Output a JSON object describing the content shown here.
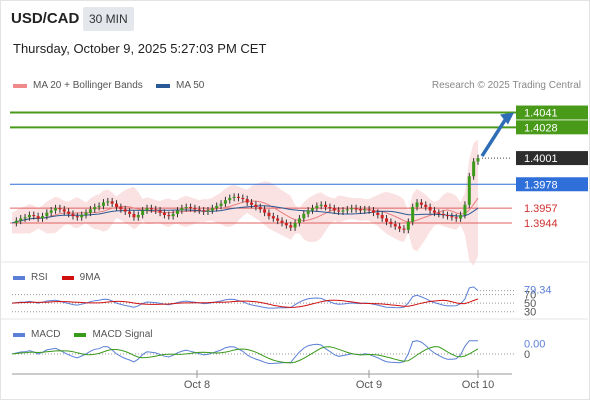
{
  "header": {
    "symbol": "USD/CAD",
    "timeframe": "30 MIN",
    "datetime": "Thursday, October 9, 2025 5:27:03 PM CET"
  },
  "legend": {
    "ma20_label": "MA 20 + Bollinger Bands",
    "ma50_label": "MA 50",
    "credit": "Research © 2025 Trading Central"
  },
  "colors": {
    "resistance_line": "#4a9a1a",
    "current_price_line": "#2e6fd9",
    "support_line": "#e06060",
    "arrow": "#2e6db5",
    "bollinger_fill": "#f8d8d8",
    "ma20": "#e87f7f",
    "ma50": "#2a5a96",
    "rsi": "#5b7fd6",
    "rsi_ma": "#d01010",
    "macd": "#5b7fd6",
    "macd_signal": "#3a9a1a"
  },
  "rsi_panel": {
    "label": "RSI",
    "ma_label": "9MA",
    "current_value": "79.34",
    "ref_70": "70",
    "ref_50": "50",
    "ref_30": "30"
  },
  "macd_panel": {
    "label": "MACD",
    "signal_label": "MACD Signal",
    "current_value": "0.00",
    "zero_label": "0"
  },
  "chart_data": {
    "type": "candlestick",
    "ylim": [
      1.3915,
      1.4052
    ],
    "x_ticks": [
      "Oct 8",
      "Oct 9",
      "Oct 10"
    ],
    "levels": [
      {
        "label": "1.4041",
        "value": 1.4041,
        "kind": "resistance"
      },
      {
        "label": "1.4028",
        "value": 1.4028,
        "kind": "resistance"
      },
      {
        "label": "1.4001",
        "value": 1.4001,
        "kind": "last_price"
      },
      {
        "label": "1.3978",
        "value": 1.3978,
        "kind": "current"
      },
      {
        "label": "1.3957",
        "value": 1.3957,
        "kind": "support"
      },
      {
        "label": "1.3944",
        "value": 1.3944,
        "kind": "support"
      }
    ],
    "price_path": [
      1.3944,
      1.3946,
      1.3948,
      1.3949,
      1.3951,
      1.395,
      1.3948,
      1.395,
      1.3953,
      1.3955,
      1.3957,
      1.3956,
      1.3954,
      1.3952,
      1.395,
      1.3949,
      1.3951,
      1.3953,
      1.3956,
      1.3958,
      1.3959,
      1.3962,
      1.3963,
      1.3961,
      1.3958,
      1.3956,
      1.3954,
      1.3952,
      1.3949,
      1.3951,
      1.3955,
      1.3957,
      1.3956,
      1.3955,
      1.3953,
      1.3951,
      1.395,
      1.3952,
      1.3955,
      1.3957,
      1.3958,
      1.3957,
      1.3956,
      1.3955,
      1.3954,
      1.3955,
      1.3957,
      1.3959,
      1.3961,
      1.3964,
      1.3966,
      1.3967,
      1.3966,
      1.3965,
      1.3962,
      1.396,
      1.3958,
      1.3956,
      1.3953,
      1.395,
      1.3948,
      1.3946,
      1.3944,
      1.3942,
      1.394,
      1.3944,
      1.3948,
      1.3952,
      1.3955,
      1.3957,
      1.3959,
      1.396,
      1.3958,
      1.3957,
      1.3955,
      1.3954,
      1.3955,
      1.3956,
      1.3957,
      1.3956,
      1.3955,
      1.3956,
      1.3955,
      1.3953,
      1.3951,
      1.3948,
      1.3945,
      1.3943,
      1.3941,
      1.3939,
      1.3938,
      1.3945,
      1.3958,
      1.3962,
      1.396,
      1.3958,
      1.3955,
      1.3953,
      1.3952,
      1.3951,
      1.395,
      1.3949,
      1.3948,
      1.3951,
      1.396,
      1.3985,
      1.3998,
      1.4001
    ]
  }
}
